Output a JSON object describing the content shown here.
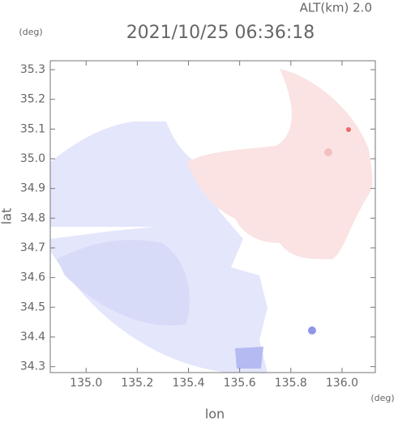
{
  "chart_data": {
    "type": "map",
    "title": "2021/10/25 06:36:18",
    "subtitle": "ALT(km)  2.0",
    "x_label": "lon",
    "y_label": "lat",
    "x_unit": "(deg)",
    "y_unit": "(deg)",
    "xlim": [
      134.86,
      136.13
    ],
    "xticks": [
      {
        "value": 135,
        "label": "135.0"
      },
      135.2,
      135.4,
      135.6,
      135.8,
      {
        "value": 136,
        "label": "136.0"
      }
    ],
    "ylim": [
      34.28,
      35.33
    ],
    "yticks": [
      34.3,
      34.4,
      34.5,
      34.6,
      34.7,
      34.8,
      34.9,
      {
        "value": 35,
        "label": "35.0"
      },
      35.1,
      35.2,
      35.3
    ],
    "grid": false
  }
}
